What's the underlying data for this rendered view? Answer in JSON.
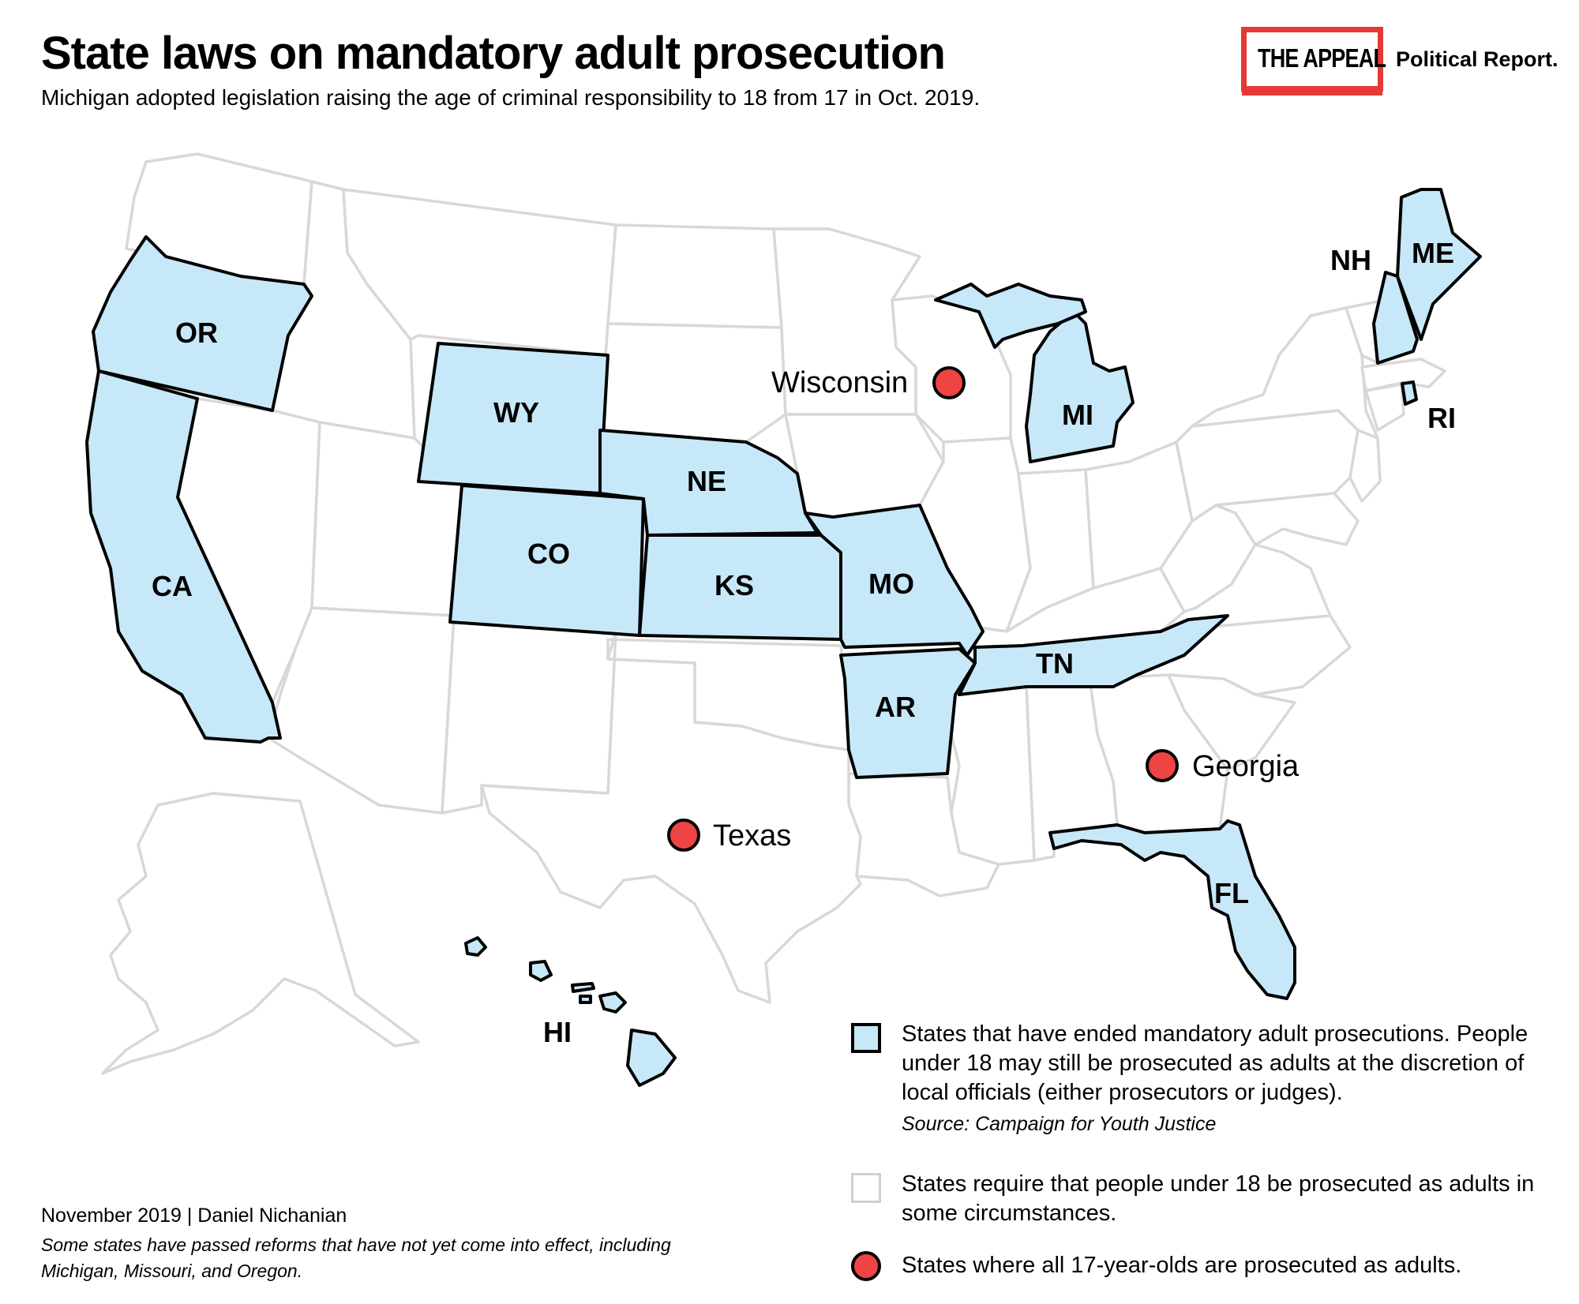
{
  "title": "State laws on mandatory adult prosecution",
  "subtitle": "Michigan adopted legislation raising the age of criminal responsibility to 18 from 17 in Oct. 2019.",
  "logo": {
    "main": "THE APPEAL",
    "sub": "Political Report."
  },
  "colors": {
    "ended": "#c7e8f8",
    "dot": "#ee4444",
    "border": "#000000",
    "other_border": "#d8d8d8"
  },
  "map": {
    "ended_states": [
      "OR",
      "CA",
      "WY",
      "NE",
      "CO",
      "KS",
      "MO",
      "AR",
      "TN",
      "MI",
      "NH",
      "ME",
      "RI",
      "FL",
      "HI"
    ],
    "dot_states": [
      "Wisconsin",
      "Texas",
      "Georgia"
    ]
  },
  "legend": [
    {
      "text": "States that have ended mandatory adult prosecutions. People under 18 may still be prosecuted as adults at the discretion of local officials (either prosecutors or judges).",
      "source": "Source: Campaign for Youth Justice"
    },
    {
      "text": "States require that people under 18 be prosecuted as adults in some circumstances."
    },
    {
      "text": "States where all 17-year-olds are prosecuted as adults."
    }
  ],
  "footer": {
    "byline": "November 2019 | Daniel Nichanian",
    "note": "Some states have passed reforms that have not yet come into effect, including Michigan, Missouri, and Oregon."
  }
}
